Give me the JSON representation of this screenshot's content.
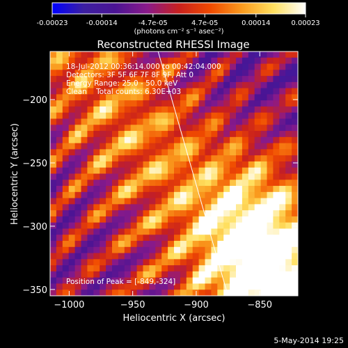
{
  "colorbar": {
    "tick_labels": [
      "-0.00023",
      "-0.00014",
      "-4.7e-05",
      "4.7e-05",
      "0.00014",
      "0.00023"
    ],
    "tick_values": [
      -0.00023,
      -0.00014,
      -4.7e-05,
      4.7e-05,
      0.00014,
      0.00023
    ],
    "range": [
      -0.00023,
      0.00023
    ],
    "unit_label": "(photons cm⁻² s⁻¹ asec⁻²)",
    "colormap": [
      "#0000ff",
      "#3c1fa0",
      "#4b1494",
      "#8a1a8a",
      "#c8201e",
      "#f04a00",
      "#fa9b1e",
      "#ffe060",
      "#ffffff"
    ]
  },
  "chart_data": {
    "type": "heatmap",
    "title": "Reconstructed RHESSI Image",
    "xlabel": "Heliocentric X (arcsec)",
    "ylabel": "Heliocentric Y (arcsec)",
    "xlim": [
      -1015,
      -820
    ],
    "ylim": [
      -355,
      -162
    ],
    "x_ticks": [
      -1000,
      -950,
      -900,
      -850
    ],
    "y_ticks": [
      -200,
      -250,
      -300,
      -350
    ],
    "limb_line": [
      [
        -930,
        -162
      ],
      [
        -875,
        -355
      ]
    ],
    "annotations": [
      "18-Jul-2012 00:36:14.000 to 00:42:04.000",
      "Detectors: 3F 5F 6F 7F 8F 9F, Att 0",
      "Energy Range: 25.0 - 50.0 keV",
      "Clean    Total counts: 6.30E+03"
    ],
    "peak_label": "Position of Peak = [-849,-324]",
    "peak_position": [
      -849,
      -324
    ]
  },
  "footer": {
    "date": "5-May-2014 19:25"
  }
}
